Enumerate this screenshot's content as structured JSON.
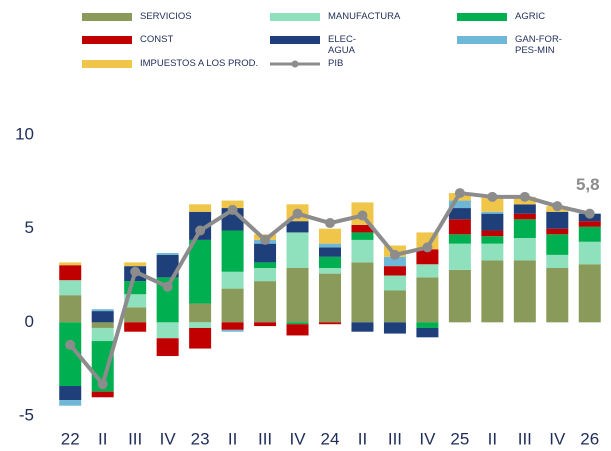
{
  "chart_data": {
    "type": "bar",
    "categories": [
      "22",
      "II",
      "III",
      "IV",
      "23",
      "II",
      "III",
      "IV",
      "24",
      "II",
      "III",
      "IV",
      "25",
      "II",
      "III",
      "IV",
      "26"
    ],
    "series": [
      {
        "name": "SERVICIOS",
        "color": "#8a9a5b",
        "values": [
          1.45,
          -0.3,
          0.8,
          0,
          1.0,
          1.8,
          2.2,
          2.9,
          2.6,
          3.2,
          1.7,
          2.4,
          2.8,
          3.3,
          3.3,
          2.9,
          3.1
        ]
      },
      {
        "name": "MANUFACTURA",
        "color": "#8fe0bd",
        "values": [
          0.8,
          -0.7,
          0.7,
          -0.85,
          -0.3,
          0.9,
          0.7,
          1.9,
          0.3,
          1.2,
          0.8,
          0.7,
          1.4,
          0.9,
          1.2,
          0.7,
          1.2
        ]
      },
      {
        "name": "AGRIC",
        "color": "#00b050",
        "values": [
          -3.4,
          -2.7,
          0.7,
          2.4,
          3.4,
          2.2,
          0.3,
          -0.1,
          0.6,
          0.4,
          0,
          -0.3,
          0.5,
          0.4,
          1.0,
          1.1,
          0.8
        ]
      },
      {
        "name": "CONST",
        "color": "#c00000",
        "values": [
          0.8,
          -0.3,
          -0.5,
          -0.95,
          -1.1,
          -0.4,
          -0.2,
          -0.6,
          -0.1,
          0.4,
          0.5,
          0.8,
          0.8,
          0.3,
          0.3,
          0.3,
          0.3
        ]
      },
      {
        "name": "ELEC-\nAGUA",
        "color": "#1f3f7a",
        "values": [
          -0.75,
          0.6,
          0.8,
          1.2,
          1.5,
          1.2,
          1.0,
          0.6,
          0.5,
          -0.5,
          -0.6,
          -0.5,
          0.6,
          0.9,
          0.5,
          0.9,
          0.4
        ]
      },
      {
        "name": "GAN-FOR-\nPES-MIN",
        "color": "#6fb7d6",
        "values": [
          -0.3,
          0.1,
          0,
          0.1,
          0,
          -0.1,
          0.2,
          0,
          0.2,
          0,
          0.5,
          0,
          0.4,
          0.1,
          0,
          0,
          0
        ]
      },
      {
        "name": "IMPUESTOS A LOS PROD.",
        "color": "#f0c64a",
        "values": [
          0.15,
          0,
          0.2,
          0,
          0.4,
          0.4,
          0.3,
          0.9,
          0.8,
          1.2,
          0.6,
          0.9,
          0.4,
          0.8,
          0.4,
          0.3,
          0
        ]
      },
      {
        "name": "PIB",
        "type": "line",
        "color": "#8c8c8c",
        "values": [
          -1.2,
          -3.3,
          2.7,
          1.9,
          4.9,
          6.0,
          4.4,
          5.8,
          5.3,
          5.7,
          3.6,
          4.0,
          6.9,
          6.7,
          6.7,
          6.2,
          5.8
        ],
        "value_labels": [
          null,
          null,
          null,
          null,
          null,
          null,
          null,
          null,
          null,
          null,
          null,
          null,
          null,
          null,
          null,
          null,
          "5,8"
        ]
      }
    ],
    "ylim": [
      -5,
      10
    ],
    "yticks": [
      -5,
      0,
      5,
      10
    ]
  }
}
